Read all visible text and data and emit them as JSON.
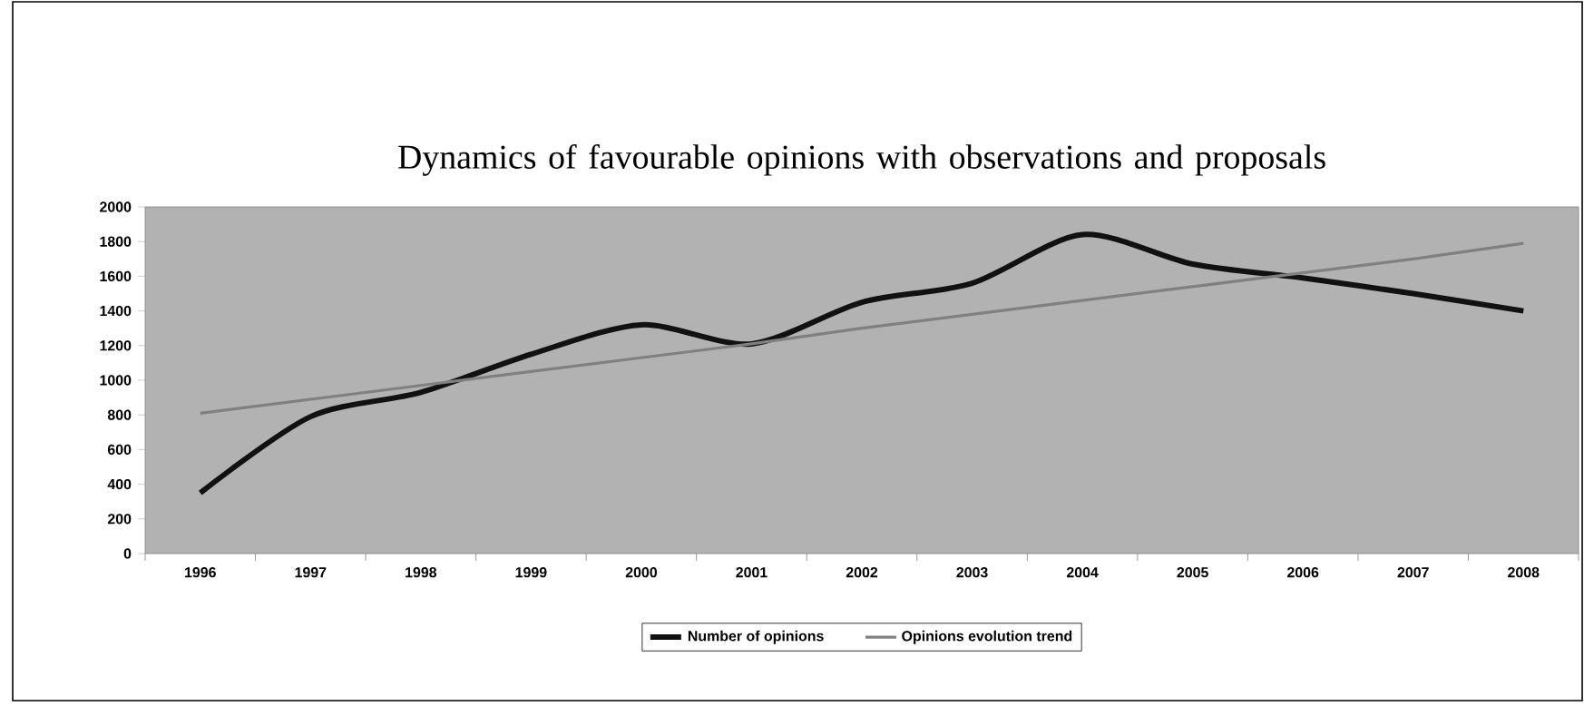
{
  "chart_data": {
    "type": "line",
    "title": "Dynamics of favourable opinions with observations and proposals",
    "categories": [
      "1996",
      "1997",
      "1998",
      "1999",
      "2000",
      "2001",
      "2002",
      "2003",
      "2004",
      "2005",
      "2006",
      "2007",
      "2008"
    ],
    "series": [
      {
        "name": "Number of opinions",
        "color": "#111111",
        "values": [
          350,
          790,
          930,
          1150,
          1320,
          1210,
          1450,
          1560,
          1840,
          1670,
          1590,
          1500,
          1400
        ]
      },
      {
        "name": "Opinions evolution trend",
        "color": "#808080",
        "values": [
          810,
          890,
          970,
          1050,
          1130,
          1210,
          1300,
          1380,
          1460,
          1540,
          1620,
          1700,
          1790
        ]
      }
    ],
    "ylim": [
      0,
      2000
    ],
    "yticks": [
      0,
      200,
      400,
      600,
      800,
      1000,
      1200,
      1400,
      1600,
      1800,
      2000
    ],
    "grid": false,
    "legend": "bottom",
    "marker": "none",
    "line_style": "solid"
  }
}
